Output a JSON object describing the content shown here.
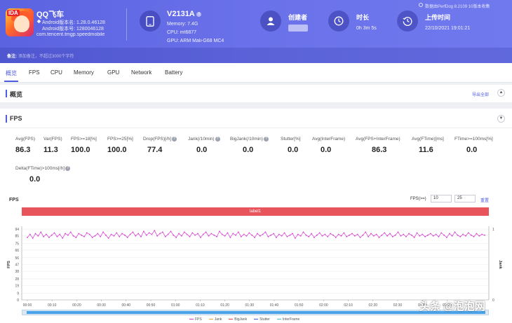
{
  "app": {
    "name": "QQ飞车",
    "badge": "IDA",
    "android_version_label": "Android版本名: 1.28.0.46128",
    "android_code_label": "Android版本号: 1280046128",
    "package": "com.tencent.tmgp.speedmobile"
  },
  "device": {
    "model": "V2131A",
    "memory": "Memory: 7.4G",
    "cpu": "CPU: mt6877",
    "gpu": "GPU: ARM Mali-G68 MC4"
  },
  "creator": {
    "title": "创建者",
    "value": ""
  },
  "duration": {
    "title": "时长",
    "value": "0h 3m 5s"
  },
  "upload": {
    "title": "上传时间",
    "value": "22/10/2021 19:01:21"
  },
  "top_note": "数据由PerfDog 8.2109 10版本收集",
  "remark": {
    "label": "备注:",
    "placeholder": "添加备注，不超过3000个字符"
  },
  "tabs": [
    "概览",
    "FPS",
    "CPU",
    "Memory",
    "GPU",
    "Network",
    "Battery"
  ],
  "overview": {
    "title": "概览",
    "export": "导出全部"
  },
  "fps_section": {
    "title": "FPS",
    "metrics": [
      {
        "label": "Avg(FPS)",
        "value": "86.3",
        "help": false
      },
      {
        "label": "Var(FPS)",
        "value": "11.3",
        "help": false
      },
      {
        "label": "FPS>=18[%]",
        "value": "100.0",
        "help": false
      },
      {
        "label": "FPS>=25[%]",
        "value": "100.0",
        "help": false
      },
      {
        "label": "Drop(FPS)[/h]",
        "value": "77.4",
        "help": true
      },
      {
        "label": "Jank(/10min)",
        "value": "0.0",
        "help": true
      },
      {
        "label": "BigJank(/10min)",
        "value": "0.0",
        "help": true
      },
      {
        "label": "Stutter[%]",
        "value": "0.0",
        "help": false
      },
      {
        "label": "Avg(InterFrame)",
        "value": "0.0",
        "help": false
      },
      {
        "label": "Avg(FPS+InterFrame)",
        "value": "86.3",
        "help": false
      },
      {
        "label": "Avg(FTime)[ms]",
        "value": "11.6",
        "help": false
      },
      {
        "label": "FTime>=100ms[%]",
        "value": "0.0",
        "help": false
      },
      {
        "label": "Delta(FTime)>100ms[/h]",
        "value": "0.0",
        "help": true
      }
    ],
    "chart_title": "FPS",
    "threshold_label": "FPS(>=)",
    "threshold_low": "10",
    "threshold_high": "25",
    "reset_label": "重置",
    "label_bar": "label1"
  },
  "chart_data": {
    "type": "line",
    "title": "FPS",
    "ylabel": "FPS",
    "y2label": "Jank",
    "ylim": [
      0,
      94
    ],
    "yticks": [
      0,
      9,
      19,
      28,
      38,
      47,
      56,
      66,
      75,
      85,
      94
    ],
    "y2lim": [
      0,
      1
    ],
    "y2ticks": [
      0,
      1
    ],
    "x_ticks": [
      "00:00",
      "00:10",
      "00:20",
      "00:30",
      "00:40",
      "00:50",
      "01:00",
      "01:10",
      "01:20",
      "01:30",
      "01:40",
      "01:50",
      "02:00",
      "02:10",
      "02:20",
      "02:30",
      "02:40",
      "02:50"
    ],
    "series": [
      {
        "name": "FPS",
        "color": "#d63ad0",
        "values": [
          83,
          87,
          82,
          88,
          85,
          90,
          84,
          87,
          83,
          86,
          89,
          84,
          87,
          82,
          88,
          86,
          90,
          85,
          83,
          88,
          86,
          84,
          89,
          87,
          83,
          85,
          88,
          84,
          90,
          86,
          82,
          87,
          85,
          89,
          84,
          88,
          86,
          83,
          87,
          90,
          85,
          88,
          84,
          91,
          86,
          89,
          87,
          92,
          85,
          88,
          90,
          84,
          87,
          91,
          86,
          83,
          88,
          85,
          90,
          87,
          84,
          89,
          86,
          88,
          83,
          87,
          90,
          85,
          88,
          86,
          84,
          91,
          87,
          85,
          89,
          83,
          88,
          86,
          90,
          84,
          87,
          85,
          89,
          86,
          83,
          88,
          85,
          87,
          90,
          84,
          86,
          88,
          83,
          87,
          85,
          89,
          84,
          86,
          88,
          82,
          87,
          85,
          90,
          86,
          84,
          88,
          83,
          86,
          89,
          85,
          87,
          84,
          88,
          86,
          83,
          87,
          85,
          89,
          84,
          86,
          88,
          85,
          87,
          83,
          86,
          90,
          84,
          88,
          85,
          87,
          83,
          86,
          89,
          85,
          88,
          84,
          86,
          90,
          85,
          87,
          84,
          88,
          86,
          83,
          89,
          85,
          87,
          84,
          86,
          88,
          85,
          87,
          84,
          89,
          86,
          83,
          88,
          85,
          90,
          86,
          84,
          87,
          85,
          89,
          86,
          84,
          88,
          85,
          87,
          86
        ]
      },
      {
        "name": "Jank",
        "color": "#e0a030",
        "values": []
      },
      {
        "name": "BigJank",
        "color": "#e04040",
        "values": []
      },
      {
        "name": "Stutter",
        "color": "#3a5ad6",
        "values": []
      },
      {
        "name": "InterFrame",
        "color": "#40b8c8",
        "values": []
      }
    ],
    "grid": true,
    "legend": "bottom"
  },
  "watermark": "头条 @泡泡网",
  "colors": {
    "accent": "#4e5ddc",
    "header": "#5b63e0",
    "label_bar": "#e8545c"
  }
}
